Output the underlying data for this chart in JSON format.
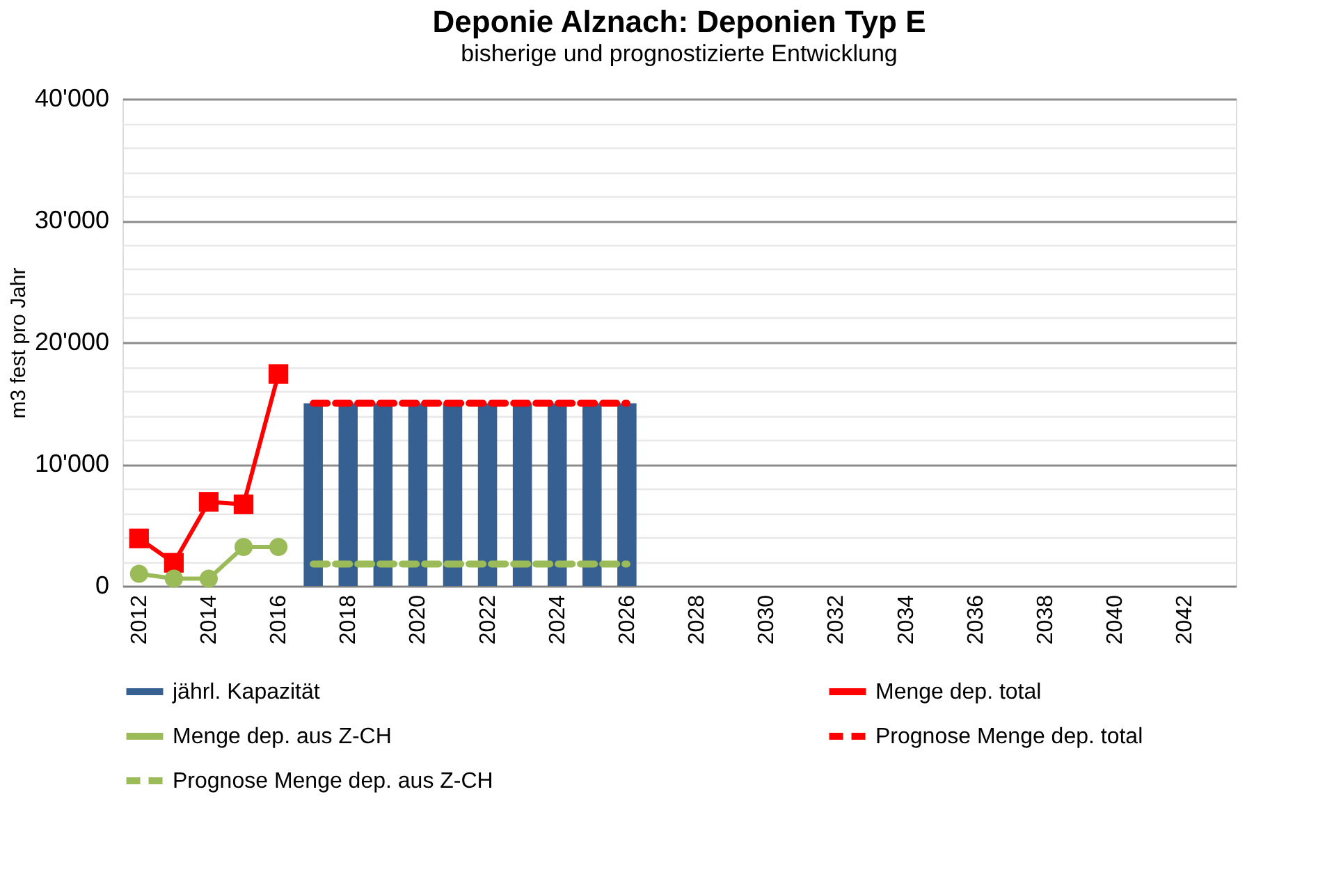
{
  "chart_data": {
    "type": "bar",
    "title": "Deponie Alznach: Deponien Typ E",
    "subtitle": "bisherige und prognostizierte Entwicklung",
    "ylabel": "m3 fest pro Jahr",
    "categories": [
      "2012",
      null,
      "2014",
      null,
      "2016",
      null,
      "2018",
      null,
      "2020",
      null,
      "2022",
      null,
      "2024",
      null,
      "2026",
      null,
      "2028",
      null,
      "2030",
      null,
      "2032",
      null,
      "2034",
      null,
      "2036",
      null,
      "2038",
      null,
      "2040",
      null,
      "2042",
      null
    ],
    "series": [
      {
        "name": "jährl. Kapazität",
        "color": "#376092",
        "values": [
          null,
          null,
          null,
          null,
          null,
          15000,
          15000,
          15000,
          15000,
          15000,
          15000,
          15000,
          15000,
          15000,
          15000,
          null,
          null,
          null,
          null,
          null,
          null,
          null,
          null,
          null,
          null,
          null,
          null,
          null,
          null,
          null,
          null,
          null
        ]
      },
      {
        "name": "Menge dep. total",
        "type": "line",
        "color": "#ff0000",
        "marker": "square",
        "line_style": "solid",
        "values": [
          3900,
          1900,
          6900,
          6700,
          17400,
          null,
          null,
          null,
          null,
          null,
          null,
          null,
          null,
          null,
          null,
          null,
          null,
          null,
          null,
          null,
          null,
          null,
          null,
          null,
          null,
          null,
          null,
          null,
          null,
          null,
          null,
          null
        ]
      },
      {
        "name": "Menge dep. aus Z-CH",
        "type": "line",
        "color": "#9bbb59",
        "marker": "circle",
        "line_style": "solid",
        "values": [
          1000,
          600,
          600,
          3200,
          3200,
          null,
          null,
          null,
          null,
          null,
          null,
          null,
          null,
          null,
          null,
          null,
          null,
          null,
          null,
          null,
          null,
          null,
          null,
          null,
          null,
          null,
          null,
          null,
          null,
          null,
          null,
          null
        ]
      },
      {
        "name": "Prognose Menge dep. total",
        "type": "line",
        "color": "#ff0000",
        "marker": "none",
        "line_style": "dashed",
        "values": [
          null,
          null,
          null,
          null,
          null,
          15000,
          15000,
          15000,
          15000,
          15000,
          15000,
          15000,
          15000,
          15000,
          15000,
          null,
          null,
          null,
          null,
          null,
          null,
          null,
          null,
          null,
          null,
          null,
          null,
          null,
          null,
          null,
          null,
          null
        ]
      },
      {
        "name": "Prognose Menge dep. aus Z-CH",
        "type": "line",
        "color": "#9bbb59",
        "marker": "none",
        "line_style": "dashed",
        "values": [
          null,
          null,
          null,
          null,
          null,
          1800,
          1800,
          1800,
          1800,
          1800,
          1800,
          1800,
          1800,
          1800,
          1800,
          null,
          null,
          null,
          null,
          null,
          null,
          null,
          null,
          null,
          null,
          null,
          null,
          null,
          null,
          null,
          null,
          null
        ]
      }
    ],
    "ylim": [
      0,
      40000
    ],
    "yticks": [
      {
        "value": 0,
        "label": "0"
      },
      {
        "value": 2000,
        "label": null
      },
      {
        "value": 4000,
        "label": null
      },
      {
        "value": 6000,
        "label": null
      },
      {
        "value": 8000,
        "label": null
      },
      {
        "value": 10000,
        "label": "10'000"
      },
      {
        "value": 12000,
        "label": null
      },
      {
        "value": 14000,
        "label": null
      },
      {
        "value": 16000,
        "label": null
      },
      {
        "value": 18000,
        "label": null
      },
      {
        "value": 20000,
        "label": "20'000"
      },
      {
        "value": 22000,
        "label": null
      },
      {
        "value": 24000,
        "label": null
      },
      {
        "value": 26000,
        "label": null
      },
      {
        "value": 28000,
        "label": null
      },
      {
        "value": 30000,
        "label": "30'000"
      },
      {
        "value": 32000,
        "label": null
      },
      {
        "value": 34000,
        "label": null
      },
      {
        "value": 36000,
        "label": null
      },
      {
        "value": 38000,
        "label": null
      },
      {
        "value": 40000,
        "label": "40'000"
      }
    ],
    "grid": "y",
    "legend": "bottom"
  }
}
